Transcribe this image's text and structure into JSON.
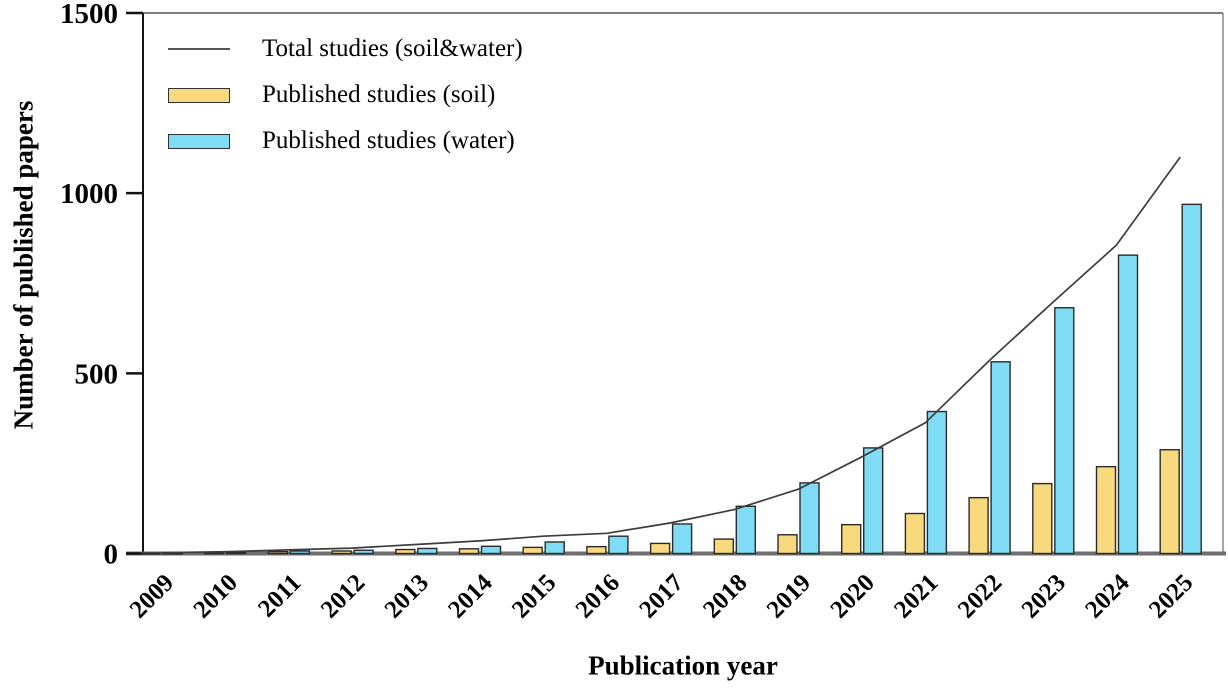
{
  "figure": {
    "xlabel": "Publication year",
    "ylabel": "Number of published papers"
  },
  "legend": {
    "position": "upper-left-inside",
    "items": [
      {
        "label": "Total studies (soil&water)",
        "swatch": "line"
      },
      {
        "label": "Published studies (soil)",
        "swatch": "rect"
      },
      {
        "label": "Published studies (water)",
        "swatch": "rect"
      }
    ]
  },
  "chart_data": {
    "type": "bar",
    "title": "",
    "xlabel": "Publication year",
    "ylabel": "Number of published papers",
    "categories": [
      "2009",
      "2010",
      "2011",
      "2012",
      "2013",
      "2014",
      "2015",
      "2016",
      "2017",
      "2018",
      "2019",
      "2020",
      "2021",
      "2022",
      "2023",
      "2024",
      "2025"
    ],
    "series": [
      {
        "name": "Published studies (soil)",
        "type": "bar",
        "color": "#F8D97D",
        "edge_color": "#2B2B2B",
        "values": [
          1,
          2,
          5,
          7,
          11,
          13,
          17,
          19,
          28,
          40,
          52,
          80,
          111,
          155,
          194,
          241,
          288
        ]
      },
      {
        "name": "Published studies (water)",
        "type": "bar",
        "color": "#7FDCF5",
        "edge_color": "#2B2B2B",
        "values": [
          1,
          3,
          7,
          9,
          14,
          20,
          32,
          48,
          82,
          131,
          196,
          293,
          394,
          532,
          682,
          828,
          969
        ]
      },
      {
        "name": "Total studies (soil&water)",
        "type": "line",
        "color": "#3D3D3D",
        "values": [
          2,
          5,
          10,
          15,
          25,
          35,
          48,
          56,
          85,
          122,
          178,
          268,
          363,
          535,
          697,
          856,
          1100
        ]
      }
    ],
    "ylim": [
      0,
      1500
    ],
    "yticks": [
      0,
      500,
      1000,
      1500
    ],
    "grid": false,
    "legend_position": "upper-left"
  }
}
